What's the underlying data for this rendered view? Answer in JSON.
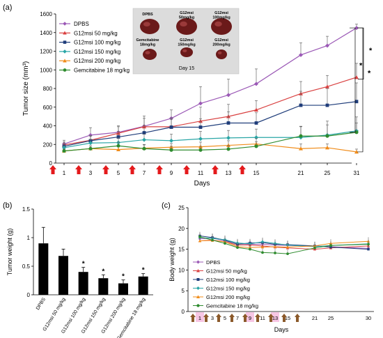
{
  "colors": {
    "DPBS": "#9b59b6",
    "G12msi 50 mg/kg": "#d94040",
    "G12msi 100 mg/kg": "#1f3d7a",
    "G12msi 150 mg/kg": "#2aa6a6",
    "G12msi 200 mg/kg": "#f08c1a",
    "Gemcitabine 18 mg/kg": "#2e8b2e",
    "arrow_a": "#e41a1c",
    "arrow_c": "#8b5a2b",
    "band_c": "#f7c6e4"
  },
  "inset": {
    "labels": [
      "DPBS",
      "G12msi\n50mg/kg",
      "G12msi\n100mg/kg",
      "Gemcitabine\n18mg/kg",
      "G12msi\n150mg/kg",
      "G12msi\n200mg/kg"
    ],
    "day_label": "Day 15"
  },
  "chart_data": [
    {
      "panel": "(a)",
      "type": "line",
      "xlabel": "Days",
      "ylabel": "Tumor size (mm³)",
      "x": [
        "1",
        "3",
        "5",
        "7",
        "9",
        "11",
        "13",
        "15",
        "21",
        "25",
        "31"
      ],
      "ylim": [
        0,
        1600
      ],
      "yticks": [
        "0",
        "200",
        "400",
        "600",
        "800",
        "1000",
        "1200",
        "1400",
        "1600"
      ],
      "legend": "top-left",
      "series": [
        {
          "name": "DPBS",
          "values": [
            205,
            300,
            330,
            395,
            480,
            640,
            730,
            850,
            1160,
            1260,
            1450
          ],
          "err": [
            40,
            80,
            70,
            110,
            90,
            180,
            170,
            160,
            130,
            100,
            40
          ]
        },
        {
          "name": "G12msi 50 mg/kg",
          "values": [
            195,
            245,
            320,
            390,
            390,
            450,
            500,
            570,
            745,
            820,
            920
          ],
          "err": [
            30,
            50,
            70,
            90,
            80,
            150,
            130,
            100,
            130,
            120,
            150
          ]
        },
        {
          "name": "G12msi 100 mg/kg",
          "values": [
            180,
            240,
            280,
            325,
            385,
            385,
            430,
            430,
            620,
            620,
            660
          ],
          "err": [
            30,
            50,
            60,
            80,
            100,
            90,
            120,
            110,
            150,
            180,
            200
          ]
        },
        {
          "name": "G12msi 150 mg/kg",
          "values": [
            165,
            215,
            220,
            250,
            240,
            260,
            270,
            275,
            275,
            300,
            345
          ],
          "err": [
            20,
            40,
            50,
            60,
            70,
            80,
            80,
            90,
            120,
            150,
            150
          ]
        },
        {
          "name": "G12msi 200 mg/kg",
          "values": [
            130,
            155,
            145,
            160,
            170,
            175,
            190,
            205,
            155,
            165,
            120
          ],
          "err": [
            20,
            30,
            30,
            40,
            40,
            50,
            50,
            60,
            50,
            40,
            30
          ]
        },
        {
          "name": "Gemcitabine 18 mg/kg",
          "values": [
            130,
            155,
            185,
            155,
            140,
            140,
            150,
            180,
            290,
            290,
            330
          ],
          "err": [
            20,
            30,
            40,
            40,
            40,
            40,
            40,
            50,
            100,
            120,
            100
          ]
        }
      ],
      "significance": [
        "*",
        "*",
        "*"
      ]
    },
    {
      "panel": "(b)",
      "type": "bar",
      "ylabel": "Tumor weight (g)",
      "categories": [
        "DPBS",
        "G12msi 50 mg/kg",
        "G12msi 100 mg/kg",
        "G12msi 150 mg/kg",
        "G12msi 200 mg/kg",
        "Gemcitabine 18 mg/kg"
      ],
      "values": [
        0.9,
        0.68,
        0.4,
        0.29,
        0.2,
        0.32
      ],
      "err": [
        0.28,
        0.12,
        0.08,
        0.06,
        0.06,
        0.05
      ],
      "marks": [
        "",
        "",
        "*",
        "*",
        "*",
        "*"
      ],
      "ylim": [
        0,
        1.5
      ],
      "yticks": [
        "0",
        "0.5",
        "1",
        "1.5"
      ]
    },
    {
      "panel": "(c)",
      "type": "line",
      "xlabel": "Days",
      "ylabel": "Body weight (g)",
      "x": [
        "1",
        "3",
        "5",
        "7",
        "9",
        "11",
        "13",
        "15",
        "21",
        "25",
        "30"
      ],
      "ylim": [
        0,
        25
      ],
      "yticks": [
        "0",
        "5",
        "10",
        "15",
        "20",
        "25"
      ],
      "legend": "bottom-left",
      "series": [
        {
          "name": "DPBS",
          "values": [
            17.5,
            17.7,
            17.0,
            16.3,
            16.2,
            16.2,
            16.0,
            15.9,
            15.8,
            15.6,
            15.2
          ]
        },
        {
          "name": "G12msi 50 mg/kg",
          "values": [
            17.0,
            17.2,
            16.8,
            16.0,
            16.0,
            15.8,
            15.5,
            15.3,
            15.0,
            15.3,
            15.8
          ]
        },
        {
          "name": "G12msi 100 mg/kg",
          "values": [
            18.2,
            17.8,
            17.2,
            16.2,
            16.5,
            16.6,
            16.2,
            16.1,
            15.8,
            15.5,
            15.0
          ]
        },
        {
          "name": "G12msi 150 mg/kg",
          "values": [
            17.8,
            17.6,
            17.3,
            16.5,
            16.3,
            16.8,
            16.4,
            16.0,
            15.6,
            15.9,
            16.3
          ]
        },
        {
          "name": "G12msi 200 mg/kg",
          "values": [
            17.0,
            17.1,
            16.8,
            15.6,
            15.4,
            15.5,
            15.6,
            15.5,
            15.8,
            16.4,
            16.9
          ]
        },
        {
          "name": "Gemcitabine 18 mg/kg",
          "values": [
            18.0,
            17.2,
            16.4,
            15.4,
            15.0,
            14.2,
            14.1,
            13.9,
            15.3,
            15.9,
            16.2
          ]
        }
      ]
    }
  ]
}
